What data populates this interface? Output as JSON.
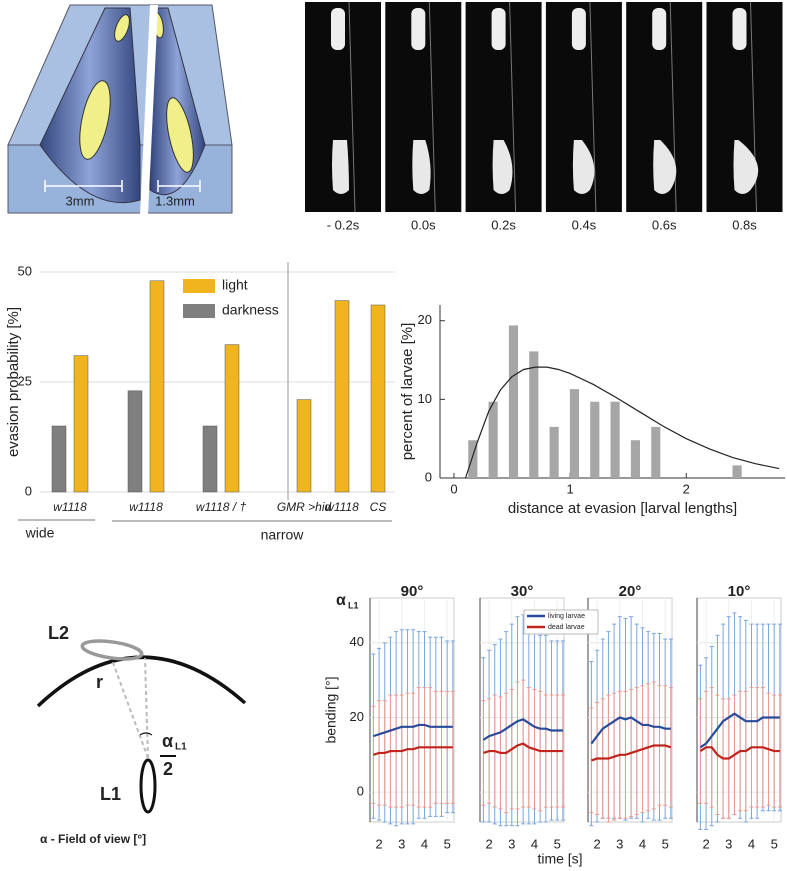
{
  "diagram_a": {
    "labels": [
      "3mm",
      "1.3mm"
    ]
  },
  "frames": {
    "labels": [
      "- 0.2s",
      "0.0s",
      "0.2s",
      "0.4s",
      "0.6s",
      "0.8s"
    ]
  },
  "chart_data": [
    {
      "type": "bar",
      "ylabel": "evasion probability [%]",
      "categories": [
        "w1118",
        "w1118",
        "w1118 / †",
        "GMR >hid",
        "w1118",
        "CS"
      ],
      "groups": [
        "wide",
        "narrow"
      ],
      "series": [
        {
          "name": "light",
          "color": "#f0b41e",
          "values": [
            31,
            48,
            33.5,
            21,
            43.5,
            42.5
          ]
        },
        {
          "name": "darkness",
          "color": "#7f7f7f",
          "values": [
            15,
            23,
            15,
            null,
            null,
            null
          ]
        }
      ],
      "ylim": [
        0,
        50
      ],
      "yticks": [
        0,
        25,
        50
      ],
      "grid": true
    },
    {
      "type": "histogram",
      "xlabel": "distance at evasion [larval lengths]",
      "ylabel": "percent of larvae [%]",
      "color": "#a6a6a6",
      "bins": [
        0.075,
        0.25,
        0.425,
        0.6,
        0.775,
        0.95,
        1.125,
        1.3,
        1.475,
        1.65,
        1.825,
        2.0,
        2.175,
        2.35,
        2.525
      ],
      "values": [
        4.8,
        9.7,
        19.4,
        16.1,
        6.5,
        11.3,
        9.7,
        9.7,
        4.8,
        6.5,
        0,
        0,
        0,
        1.6
      ],
      "fit": {
        "color": "#222222",
        "x": [
          0.1,
          0.2,
          0.3,
          0.4,
          0.5,
          0.6,
          0.7,
          0.8,
          0.9,
          1.0,
          1.2,
          1.4,
          1.6,
          1.8,
          2.0,
          2.2,
          2.4,
          2.6,
          2.8
        ],
        "values": [
          0,
          4.5,
          8.5,
          11.2,
          12.9,
          13.8,
          14.1,
          14.1,
          13.8,
          13.3,
          11.9,
          10.2,
          8.4,
          6.6,
          5.0,
          3.7,
          2.6,
          1.8,
          1.2
        ]
      },
      "xlim": [
        -0.12,
        2.85
      ],
      "xticks": [
        0,
        1,
        2
      ],
      "ylim": [
        0,
        22
      ],
      "yticks": [
        0,
        10,
        20
      ]
    },
    {
      "type": "multi-line",
      "panel_label": {
        "main": "α",
        "sub": "L1"
      },
      "panel_titles": [
        "90°",
        "30°",
        "20°",
        "10°"
      ],
      "xlabel": "time [s]",
      "ylabel": "bending [°]",
      "x": [
        1.75,
        2.0,
        2.25,
        2.5,
        2.75,
        3.0,
        3.25,
        3.5,
        3.75,
        4.0,
        4.25,
        4.5,
        4.75,
        5.0,
        5.25
      ],
      "xlim": [
        1.6,
        5.3
      ],
      "xticks": [
        2,
        3,
        4,
        5
      ],
      "ylim": [
        -8,
        52
      ],
      "yticks": [
        0,
        20,
        40
      ],
      "series": [
        {
          "name": "living larvae",
          "color": "#2a4a9a",
          "band_color": "#7aa6dc",
          "values": [
            [
              15,
              15.5,
              16,
              16.5,
              17,
              17.5,
              17.5,
              17.5,
              18,
              18,
              17.5,
              17.5,
              17.5,
              17.5,
              17.5
            ],
            [
              14,
              15,
              15.5,
              16,
              17,
              18,
              19,
              19.5,
              18.5,
              17.5,
              17,
              17,
              16.5,
              16.5,
              16.5
            ],
            [
              13,
              15,
              17,
              18,
              19,
              20,
              19.5,
              20,
              19,
              18,
              18,
              17.5,
              17.5,
              17,
              17
            ],
            [
              12,
              13,
              15,
              17,
              19,
              20,
              21,
              20,
              19,
              19,
              19,
              20,
              20,
              20,
              20
            ]
          ],
          "errors": [
            [
              22,
              23,
              24,
              25,
              26,
              26,
              26,
              26,
              25,
              25,
              24,
              24,
              24,
              23,
              23
            ],
            [
              22,
              23,
              24,
              25,
              26,
              27,
              28,
              28,
              27,
              26,
              25,
              25,
              24,
              24,
              24
            ],
            [
              22,
              23,
              24,
              25,
              26,
              27,
              27,
              27,
              26,
              26,
              25,
              25,
              25,
              24,
              24
            ],
            [
              22,
              23,
              24,
              25,
              26,
              27,
              27,
              27,
              27,
              26,
              26,
              25,
              25,
              25,
              25
            ]
          ]
        },
        {
          "name": "dead larvae",
          "color": "#c0241c",
          "band_color": "#ef9a8e",
          "values": [
            [
              10,
              10.5,
              10.5,
              11,
              11,
              11,
              11.5,
              11.5,
              12,
              12,
              12,
              12,
              12,
              12,
              12
            ],
            [
              10.5,
              11,
              11,
              10.5,
              10.5,
              11.5,
              12.5,
              13,
              12,
              11.5,
              11,
              11,
              11,
              11,
              11
            ],
            [
              8.5,
              9,
              9,
              9,
              9.5,
              10,
              10,
              10.5,
              11,
              11.5,
              12,
              12.5,
              12.5,
              12.5,
              12
            ],
            [
              11,
              12,
              12,
              10,
              9,
              9,
              10,
              11,
              11,
              12,
              12,
              12,
              11.5,
              11,
              11
            ]
          ],
          "errors": [
            [
              13,
              14,
              14,
              15,
              15,
              15,
              15,
              15,
              16,
              16,
              16,
              15,
              15,
              15,
              15
            ],
            [
              14,
              14,
              15,
              15,
              16,
              16,
              17,
              17,
              16,
              16,
              16,
              15,
              15,
              15,
              15
            ],
            [
              14,
              15,
              16,
              17,
              17,
              17,
              17,
              17,
              17,
              17,
              17,
              17,
              16,
              16,
              16
            ],
            [
              14,
              15,
              16,
              16,
              16,
              16,
              16,
              16,
              16,
              16,
              16,
              16,
              15,
              15,
              15
            ]
          ]
        }
      ]
    }
  ],
  "diagram_d": {
    "l2": "L2",
    "r": "r",
    "l1": "L1",
    "alpha": "α",
    "alpha_sub": "L1",
    "half": "2",
    "caption": "α - Field of view [°]"
  }
}
